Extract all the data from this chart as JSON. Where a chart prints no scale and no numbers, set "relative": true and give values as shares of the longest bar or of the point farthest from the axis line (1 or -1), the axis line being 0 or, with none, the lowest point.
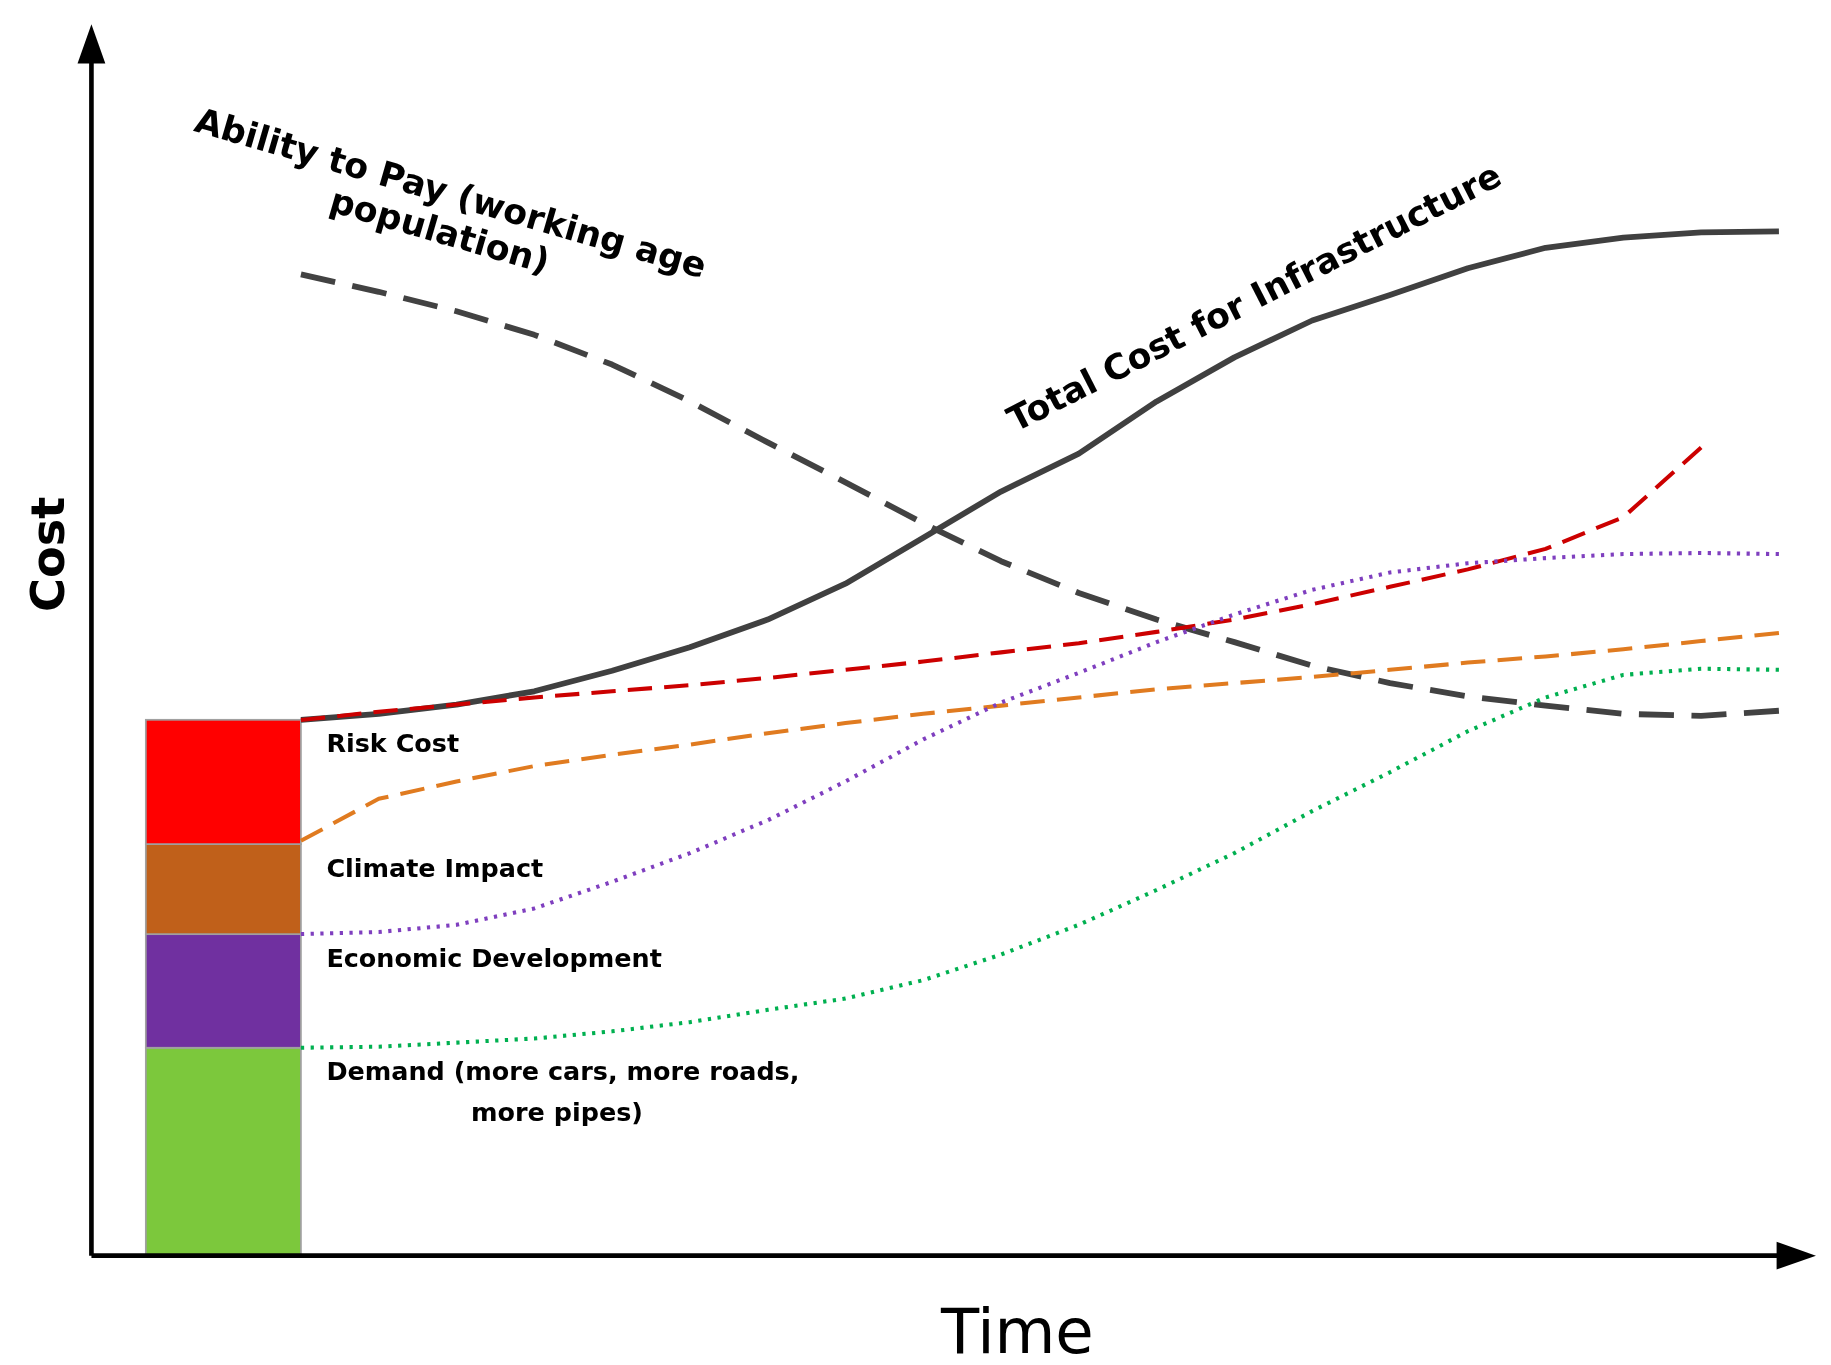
{
  "chart_data": [
    {
      "type": "bar",
      "relative": true,
      "stacked": true,
      "categories": [
        null
      ],
      "series": [
        {
          "name": "Demand (more cars, more roads, more pipes)",
          "color": "#7cc83c",
          "values": [
            0.388
          ]
        },
        {
          "name": "Economic Development",
          "color": "#7030a0",
          "values": [
            0.212
          ]
        },
        {
          "name": "Climate Impact",
          "color": "#c0601a",
          "values": [
            0.168
          ]
        },
        {
          "name": "Risk Cost",
          "color": "#ff0000",
          "values": [
            0.232
          ]
        }
      ]
    },
    {
      "type": "line",
      "relative": true,
      "xlabel": "Time",
      "ylabel": "Cost",
      "categories": [
        null,
        null,
        null,
        null,
        null,
        null,
        null,
        null,
        null,
        null,
        null,
        null,
        null,
        null,
        null,
        null,
        null,
        null,
        null,
        null
      ],
      "series": [
        {
          "name": "Total Cost for Infrastructure",
          "color": "#404040",
          "line_style": "solid",
          "values": [
            0.523,
            0.529,
            0.538,
            0.551,
            0.571,
            0.594,
            0.621,
            0.656,
            0.701,
            0.746,
            0.783,
            0.834,
            0.877,
            0.913,
            0.938,
            0.964,
            0.984,
            0.994,
            0.999,
            1
          ]
        },
        {
          "name": "Ability to Pay (working age population)",
          "color": "#424242",
          "line_style": "dashed",
          "values": [
            0.958,
            0.941,
            0.922,
            0.899,
            0.87,
            0.834,
            0.794,
            0.755,
            0.715,
            0.678,
            0.647,
            0.621,
            0.599,
            0.576,
            0.559,
            0.546,
            0.537,
            0.529,
            0.527,
            0.532
          ]
        },
        {
          "color": "#cc0000",
          "line_style": "dashed",
          "values": [
            0.523,
            0.531,
            0.538,
            0.545,
            0.551,
            0.557,
            0.564,
            0.572,
            0.58,
            0.589,
            0.598,
            0.609,
            0.621,
            0.636,
            0.653,
            0.67,
            0.69,
            0.721,
            0.789,
            null
          ]
        },
        {
          "color": "#e07b20",
          "line_style": "dashed",
          "values": [
            0.405,
            0.446,
            0.463,
            0.478,
            0.489,
            0.499,
            0.51,
            0.52,
            0.529,
            0.537,
            0.545,
            0.553,
            0.559,
            0.565,
            0.572,
            0.579,
            0.585,
            0.592,
            0.6,
            0.608
          ]
        },
        {
          "color": "#7f3fbf",
          "line_style": "dotted",
          "values": [
            0.314,
            0.316,
            0.323,
            0.339,
            0.365,
            0.393,
            0.425,
            0.463,
            0.504,
            0.54,
            0.569,
            0.599,
            0.626,
            0.65,
            0.667,
            0.676,
            0.681,
            0.685,
            0.686,
            0.685
          ]
        },
        {
          "color": "#00b050",
          "line_style": "dotted",
          "values": [
            0.203,
            0.204,
            0.208,
            0.212,
            0.219,
            0.228,
            0.24,
            0.251,
            0.269,
            0.294,
            0.323,
            0.357,
            0.393,
            0.434,
            0.472,
            0.512,
            0.545,
            0.567,
            0.573,
            0.572
          ]
        }
      ]
    }
  ]
}
